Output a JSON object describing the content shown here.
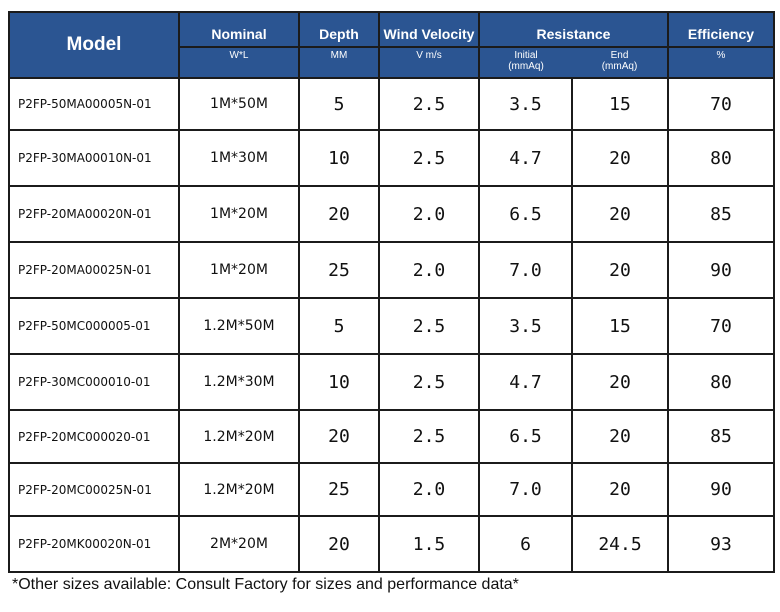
{
  "header": {
    "model": "Model",
    "nominal": "Nominal",
    "nominal_unit": "W*L",
    "depth": "Depth",
    "depth_unit": "MM",
    "wind_velocity": "Wind Velocity",
    "wind_velocity_unit": "V m/s",
    "resistance": "Resistance",
    "initial": "Initial",
    "initial_unit": "(mmAq)",
    "end": "End",
    "end_unit": "(mmAq)",
    "efficiency": "Efficiency",
    "efficiency_unit": "%"
  },
  "rows": [
    {
      "model": "P2FP-50MA00005N-01",
      "size": "1M*50M",
      "depth": "5",
      "velocity": "2.5",
      "initial": "3.5",
      "end": "15",
      "efficiency": "70"
    },
    {
      "model": "P2FP-30MA00010N-01",
      "size": "1M*30M",
      "depth": "10",
      "velocity": "2.5",
      "initial": "4.7",
      "end": "20",
      "efficiency": "80"
    },
    {
      "model": "P2FP-20MA00020N-01",
      "size": "1M*20M",
      "depth": "20",
      "velocity": "2.0",
      "initial": "6.5",
      "end": "20",
      "efficiency": "85"
    },
    {
      "model": "P2FP-20MA00025N-01",
      "size": "1M*20M",
      "depth": "25",
      "velocity": "2.0",
      "initial": "7.0",
      "end": "20",
      "efficiency": "90"
    },
    {
      "model": "P2FP-50MC000005-01",
      "size": "1.2M*50M",
      "depth": "5",
      "velocity": "2.5",
      "initial": "3.5",
      "end": "15",
      "efficiency": "70"
    },
    {
      "model": "P2FP-30MC000010-01",
      "size": "1.2M*30M",
      "depth": "10",
      "velocity": "2.5",
      "initial": "4.7",
      "end": "20",
      "efficiency": "80"
    },
    {
      "model": "P2FP-20MC000020-01",
      "size": "1.2M*20M",
      "depth": "20",
      "velocity": "2.5",
      "initial": "6.5",
      "end": "20",
      "efficiency": "85"
    },
    {
      "model": "P2FP-20MC00025N-01",
      "size": "1.2M*20M",
      "depth": "25",
      "velocity": "2.0",
      "initial": "7.0",
      "end": "20",
      "efficiency": "90"
    },
    {
      "model": "P2FP-20MK00020N-01",
      "size": "2M*20M",
      "depth": "20",
      "velocity": "1.5",
      "initial": "6",
      "end": "24.5",
      "efficiency": "93"
    }
  ],
  "footnote": "*Other sizes available: Consult Factory for sizes and performance data*",
  "colors": {
    "header_bg": "#2b5592",
    "header_text": "#ffffff",
    "border": "#1b1b1b"
  }
}
